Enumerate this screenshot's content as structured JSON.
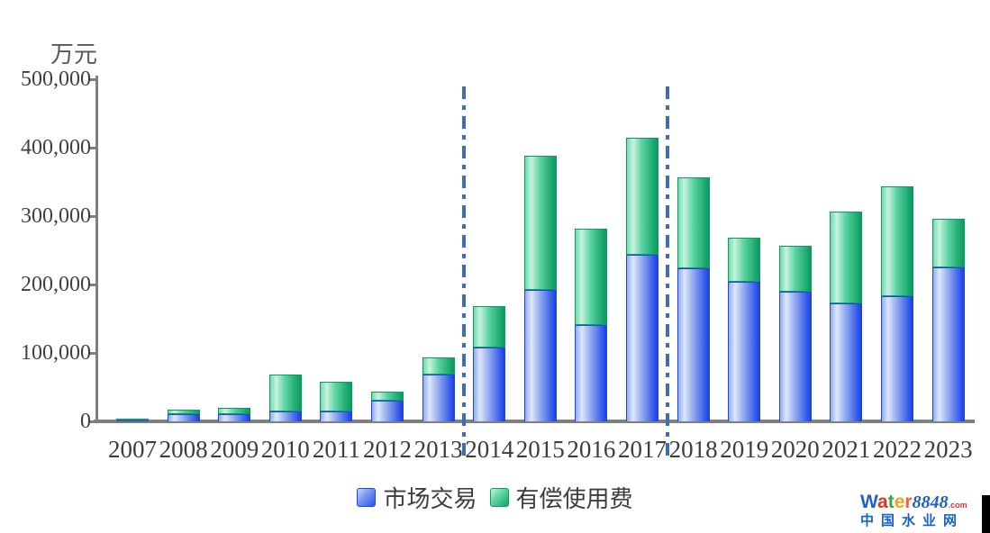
{
  "unit_label": "万元",
  "chart_data": {
    "type": "bar",
    "stacked": true,
    "title": "",
    "ylabel": "万元",
    "xlabel": "",
    "ylim": [
      0,
      500000
    ],
    "ytick_interval": 100000,
    "ytick_labels": [
      "0",
      "100,000",
      "200,000",
      "300,000",
      "400,000",
      "500,000"
    ],
    "grid": false,
    "legend_position": "bottom-center",
    "categories": [
      "2007",
      "2008",
      "2009",
      "2010",
      "2011",
      "2012",
      "2013",
      "2014",
      "2015",
      "2016",
      "2017",
      "2018",
      "2019",
      "2020",
      "2021",
      "2022",
      "2023"
    ],
    "series": [
      {
        "name": "市场交易",
        "color": "#2a50ea",
        "values": [
          1500,
          10000,
          11000,
          14000,
          15000,
          30000,
          68000,
          108000,
          192000,
          141000,
          244000,
          224000,
          204000,
          190000,
          173000,
          183000,
          225000
        ]
      },
      {
        "name": "有偿使用费",
        "color": "#13a369",
        "values": [
          3000,
          6500,
          9000,
          54000,
          43000,
          14000,
          25000,
          61000,
          196000,
          140000,
          171000,
          132000,
          65000,
          66000,
          133000,
          160000,
          71000
        ]
      }
    ],
    "annotations": {
      "vertical_dashdot_dividers_between": [
        [
          "2013",
          "2014"
        ],
        [
          "2017",
          "2018"
        ]
      ],
      "divider_color": "#3e6cb8"
    }
  },
  "legend": {
    "items": [
      {
        "label": "市场交易",
        "swatch": "blue"
      },
      {
        "label": "有偿使用费",
        "swatch": "green"
      }
    ]
  },
  "watermark": {
    "brand_letters": [
      "W",
      "a",
      "t",
      "e",
      "r"
    ],
    "brand_number": "8848",
    "brand_suffix": ".com",
    "subtitle": "中国水业网"
  },
  "colors": {
    "bar_blue": "#2a50ea",
    "bar_green": "#13a369",
    "axis": "#7f7f7f",
    "text": "#3d3d3d",
    "divider": "#3e6cb8"
  }
}
